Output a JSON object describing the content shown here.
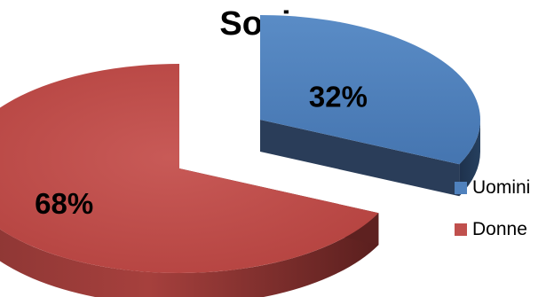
{
  "chart_data": {
    "type": "pie",
    "style": "3d-exploded",
    "title": "Soci",
    "slices": [
      {
        "label": "Uomini",
        "value": 32,
        "display": "32%",
        "color": "#4F81BD",
        "side_color": "#1F3350"
      },
      {
        "label": "Donne",
        "value": 68,
        "display": "68%",
        "color": "#C0504D",
        "side_color": "#5E2221"
      }
    ],
    "legend_position": "right"
  }
}
